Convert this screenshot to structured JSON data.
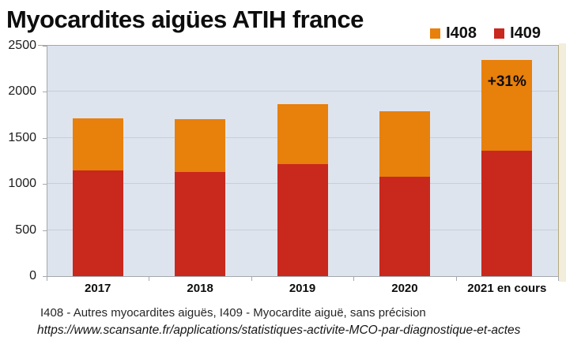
{
  "title": "Myocardites aigües ATIH france",
  "footer": {
    "codes_line": "I408 - Autres myocardites aiguës, I409 - Myocardite aiguë, sans précision",
    "source_url": "https://www.scansante.fr/applications/statistiques-activite-MCO-par-diagnostique-et-actes"
  },
  "chart_data": {
    "type": "bar",
    "stacked": true,
    "title": "Myocardites aigües ATIH france",
    "categories": [
      "2017",
      "2018",
      "2019",
      "2020",
      "2021 en cours"
    ],
    "series": [
      {
        "name": "I409",
        "color": "#c9281d",
        "values": [
          1145,
          1130,
          1215,
          1075,
          1365
        ]
      },
      {
        "name": "I408",
        "color": "#e8800c",
        "values": [
          570,
          570,
          655,
          715,
          980
        ]
      }
    ],
    "stack_totals": [
      1715,
      1700,
      1870,
      1790,
      2345
    ],
    "legend": [
      {
        "label": "I408",
        "color": "#e8800c"
      },
      {
        "label": "I409",
        "color": "#c9281d"
      }
    ],
    "legend_position": "top-right",
    "ylim": [
      0,
      2500
    ],
    "yticks": [
      0,
      500,
      1000,
      1500,
      2000,
      2500
    ],
    "grid": true,
    "annotations": [
      {
        "text": "+31%",
        "category": "2021 en cours",
        "series": "I408"
      }
    ]
  },
  "colors": {
    "plot_background": "#dee4ee",
    "gridline": "#c8ced9",
    "axis": "#a3a8ae",
    "frame": "#b3a77c",
    "right_margin": "#f2eedb",
    "text": "#0d0d0d"
  }
}
